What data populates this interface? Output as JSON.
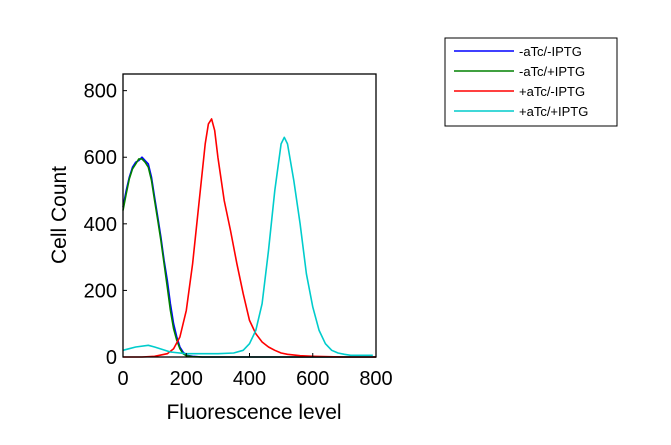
{
  "chart_data": {
    "type": "line",
    "title": "",
    "xlabel": "Fluorescence level",
    "ylabel": "Cell Count",
    "xlim": [
      0,
      800
    ],
    "ylim": [
      0,
      850
    ],
    "xticks": [
      0,
      200,
      400,
      600,
      800
    ],
    "yticks": [
      0,
      200,
      400,
      600,
      800
    ],
    "grid": false,
    "legend_position": "top-right",
    "series": [
      {
        "name": "-aTc/-IPTG",
        "color": "#0000ff",
        "x": [
          0,
          10,
          20,
          30,
          40,
          50,
          60,
          70,
          80,
          90,
          100,
          110,
          120,
          130,
          140,
          150,
          160,
          170,
          180,
          190,
          200,
          220,
          250,
          300,
          400,
          500,
          600,
          700,
          800
        ],
        "y": [
          450,
          500,
          540,
          570,
          585,
          590,
          600,
          590,
          580,
          540,
          480,
          420,
          360,
          290,
          230,
          160,
          100,
          60,
          30,
          15,
          5,
          2,
          0,
          0,
          0,
          0,
          0,
          0,
          0
        ]
      },
      {
        "name": "-aTc/+IPTG",
        "color": "#008000",
        "x": [
          0,
          10,
          20,
          30,
          40,
          50,
          60,
          70,
          80,
          90,
          100,
          110,
          120,
          130,
          140,
          150,
          160,
          170,
          180,
          190,
          200,
          220,
          250,
          300,
          400,
          500,
          600,
          700,
          800
        ],
        "y": [
          440,
          490,
          535,
          565,
          580,
          595,
          595,
          585,
          570,
          530,
          470,
          410,
          350,
          280,
          210,
          140,
          85,
          50,
          25,
          10,
          4,
          1,
          0,
          0,
          0,
          0,
          0,
          0,
          0
        ]
      },
      {
        "name": "+aTc/-IPTG",
        "color": "#ff0000",
        "x": [
          0,
          60,
          100,
          140,
          160,
          180,
          200,
          220,
          240,
          260,
          270,
          280,
          290,
          300,
          320,
          340,
          360,
          380,
          400,
          420,
          440,
          460,
          480,
          500,
          520,
          560,
          600,
          650,
          700,
          800
        ],
        "y": [
          0,
          0,
          2,
          10,
          25,
          60,
          140,
          280,
          460,
          640,
          700,
          715,
          680,
          600,
          470,
          380,
          280,
          190,
          110,
          70,
          45,
          30,
          20,
          12,
          8,
          4,
          2,
          1,
          0,
          0
        ]
      },
      {
        "name": "+aTc/+IPTG",
        "color": "#00cccc",
        "x": [
          0,
          40,
          80,
          100,
          150,
          200,
          250,
          300,
          350,
          380,
          400,
          420,
          440,
          460,
          480,
          500,
          510,
          520,
          540,
          560,
          580,
          600,
          620,
          640,
          660,
          680,
          700,
          720,
          750,
          790
        ],
        "y": [
          20,
          30,
          35,
          30,
          15,
          10,
          10,
          10,
          12,
          20,
          40,
          80,
          160,
          320,
          500,
          640,
          660,
          640,
          530,
          400,
          250,
          150,
          80,
          40,
          20,
          12,
          8,
          5,
          5,
          5
        ]
      }
    ]
  }
}
